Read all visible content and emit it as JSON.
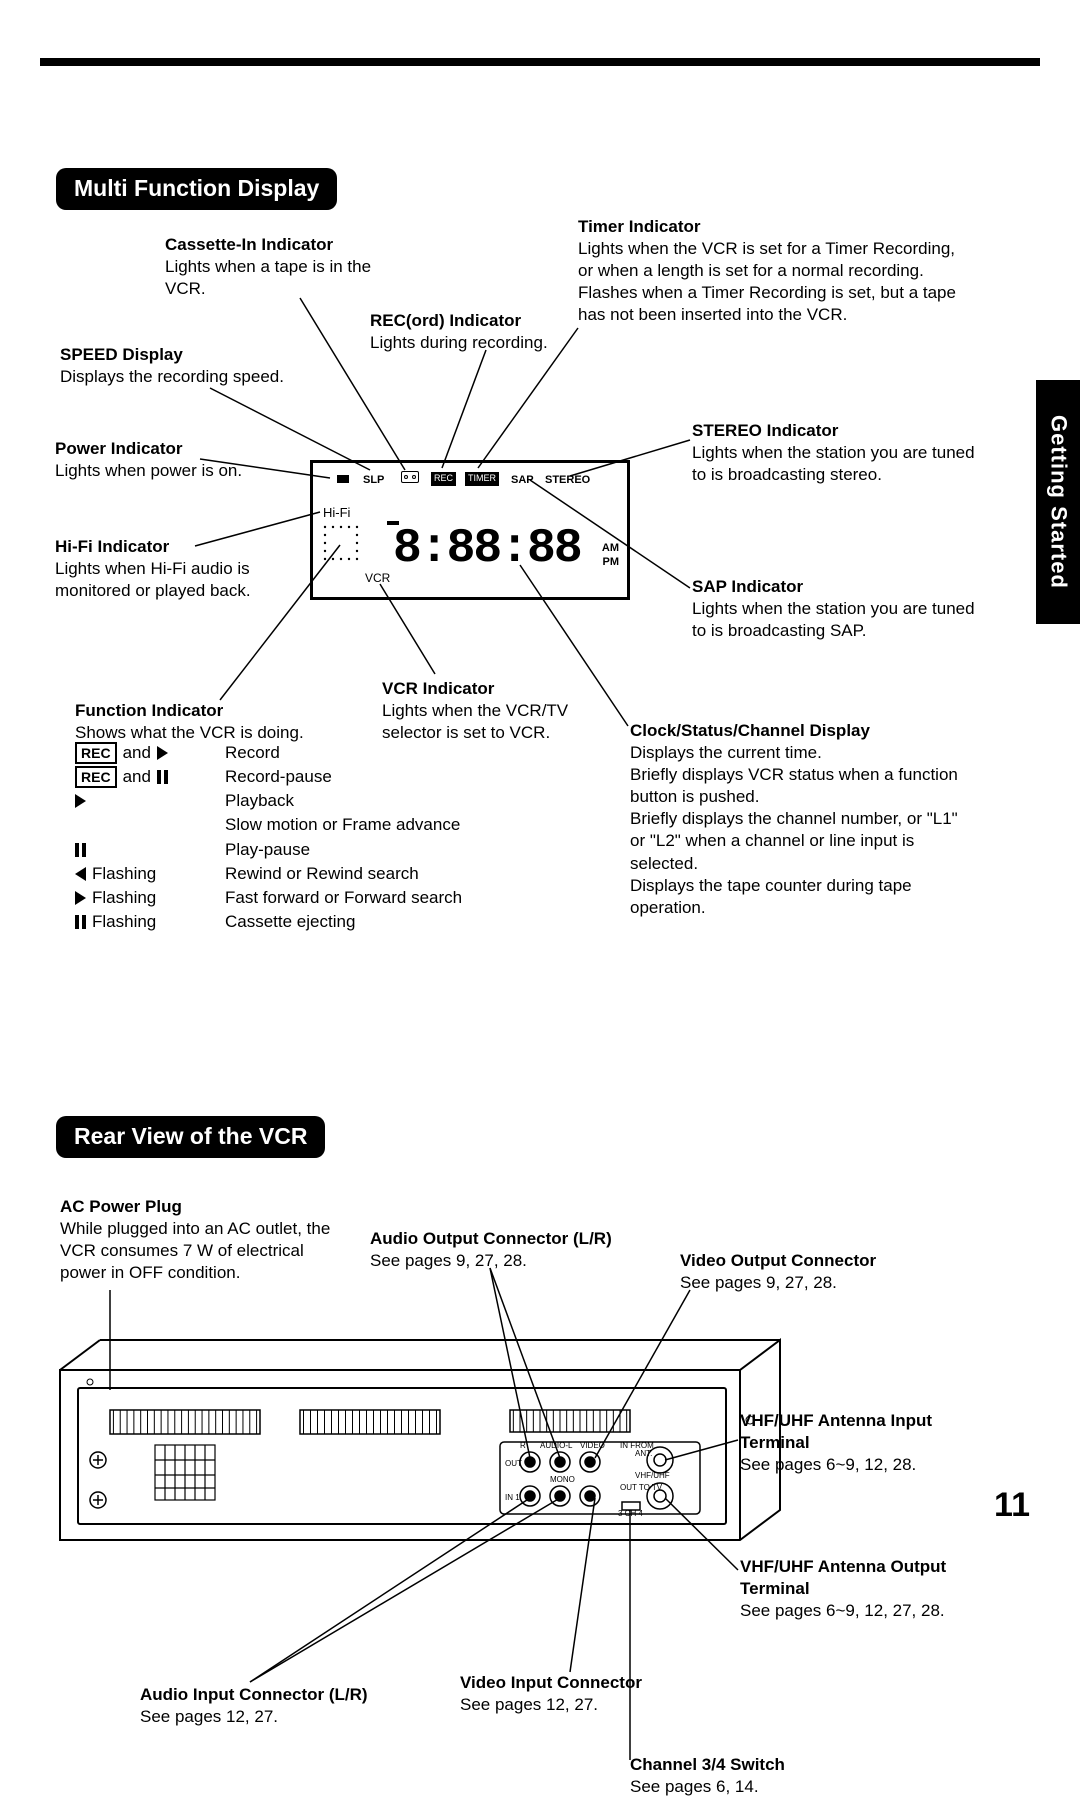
{
  "page_number": "11",
  "side_tab": "Getting Started",
  "section1": {
    "title": "Multi Function Display",
    "callouts": {
      "cassette_in": {
        "title": "Cassette-In Indicator",
        "desc": "Lights when a tape is in the VCR."
      },
      "speed": {
        "title": "SPEED Display",
        "desc": "Displays the recording speed."
      },
      "power": {
        "title": "Power Indicator",
        "desc": "Lights when power is on."
      },
      "hifi": {
        "title": "Hi-Fi Indicator",
        "desc": "Lights when Hi-Fi audio is monitored or played back."
      },
      "function": {
        "title": "Function Indicator",
        "desc": "Shows what the VCR is doing."
      },
      "rec": {
        "title": "REC(ord) Indicator",
        "desc": "Lights during recording."
      },
      "timer": {
        "title": "Timer Indicator",
        "desc": "Lights when the VCR is set for a Timer Recording, or when a length is set for a normal recording.\nFlashes when a Timer Recording is set, but a tape has not been inserted into the VCR."
      },
      "stereo": {
        "title": "STEREO Indicator",
        "desc": "Lights when the station you are tuned to is broadcasting stereo."
      },
      "sap": {
        "title": "SAP Indicator",
        "desc": "Lights when the station you are tuned to is broadcasting SAP."
      },
      "vcr": {
        "title": "VCR Indicator",
        "desc": "Lights when the VCR/TV selector is set to VCR."
      },
      "clock": {
        "title": "Clock/Status/Channel Display",
        "desc": "Displays the current time.\nBriefly displays VCR status when a function button is pushed.\nBriefly displays the channel number, or \"L1\" or \"L2\" when a channel or line input is selected.\nDisplays the tape counter during tape operation."
      }
    },
    "function_rows": [
      {
        "sym_text": "and",
        "desc": "Record",
        "has_rec": true,
        "has_play": true
      },
      {
        "sym_text": "and",
        "desc": "Record-pause",
        "has_rec": true,
        "has_pause": true
      },
      {
        "sym_text": "",
        "desc": "Playback",
        "has_play": true
      },
      {
        "sym_text": "",
        "desc": "Slow motion or Frame advance",
        "blank": true
      },
      {
        "sym_text": "",
        "desc": "Play-pause",
        "has_pause": true
      },
      {
        "sym_text": "Flashing",
        "desc": "Rewind or Rewind search",
        "has_rew": true
      },
      {
        "sym_text": "Flashing",
        "desc": "Fast forward or Forward search",
        "has_play": true
      },
      {
        "sym_text": "Flashing",
        "desc": "Cassette ejecting",
        "has_pause": true
      }
    ],
    "lcd": {
      "slp": "SLP",
      "hifi": "Hi-Fi",
      "rec": "REC",
      "timer": "TIMER",
      "sap": "SAP",
      "stereo": "STEREO",
      "vcr": "VCR",
      "am": "AM",
      "pm": "PM",
      "digits": "8:88:88"
    }
  },
  "section2": {
    "title": "Rear View of the VCR",
    "callouts": {
      "ac": {
        "title": "AC Power Plug",
        "desc": "While plugged into an AC outlet, the VCR consumes 7 W of electrical power in OFF condition."
      },
      "audio_out": {
        "title": "Audio Output Connector (L/R)",
        "desc": "See pages 9, 27, 28."
      },
      "video_out": {
        "title": "Video Output Connector",
        "desc": "See pages 9, 27, 28."
      },
      "vhf_in": {
        "title": "VHF/UHF Antenna Input Terminal",
        "desc": "See pages 6~9, 12, 28."
      },
      "vhf_out": {
        "title": "VHF/UHF Antenna Output Terminal",
        "desc": "See pages 6~9, 12, 27, 28."
      },
      "audio_in": {
        "title": "Audio Input Connector (L/R)",
        "desc": "See pages 12, 27."
      },
      "video_in": {
        "title": "Video Input Connector",
        "desc": "See pages 12, 27."
      },
      "ch34": {
        "title": "Channel 3/4 Switch",
        "desc": "See pages 6, 14."
      }
    },
    "rear_labels": {
      "audio_r": "R",
      "audio_l": "AUDIO-L",
      "video": "VIDEO",
      "in_from": "IN FROM ANT.",
      "out": "OUT",
      "in1": "IN 1",
      "mono": "MONO",
      "vhfuhf": "VHF/UHF",
      "out_to_tv": "OUT TO TV",
      "ch34": "3 CH 4"
    }
  }
}
